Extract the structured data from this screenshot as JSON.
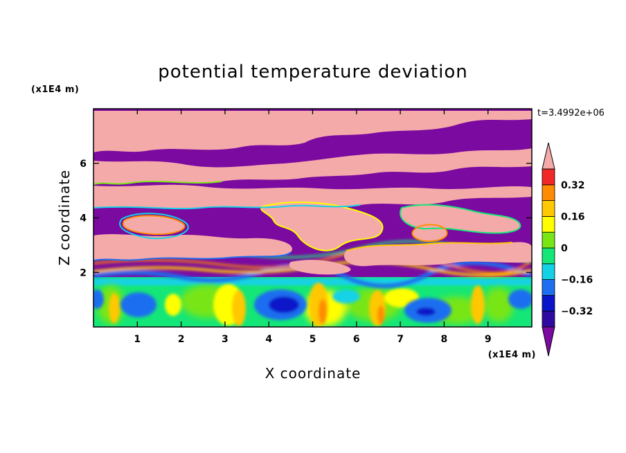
{
  "chart_data": {
    "type": "heatmap",
    "title": "potential temperature deviation",
    "xlabel": "X coordinate",
    "ylabel": "Z coordinate",
    "x_unit": "(x1E4 m)",
    "y_unit": "(x1E4 m)",
    "time_label": "t=3.4992e+06",
    "xlim": [
      0,
      10
    ],
    "ylim": [
      0,
      8
    ],
    "x_ticks": [
      "1",
      "2",
      "3",
      "4",
      "5",
      "6",
      "7",
      "8",
      "9"
    ],
    "y_ticks": [
      "2",
      "4",
      "6"
    ],
    "grid": false,
    "colorbar": {
      "placement": "right",
      "extend": "both",
      "levels": [
        -0.4,
        -0.32,
        -0.24,
        -0.16,
        -0.08,
        0,
        0.08,
        0.16,
        0.24,
        0.32,
        0.4
      ],
      "tick_labels": [
        "0.32",
        "0.16",
        "0",
        "−0.16",
        "−0.32"
      ],
      "tick_values": [
        0.32,
        0.16,
        0,
        -0.16,
        -0.32
      ],
      "colors": [
        "#7B0AA0",
        "#2E0AA0",
        "#0A14C8",
        "#1E6EF0",
        "#14D2E6",
        "#14E678",
        "#78E614",
        "#FFFF00",
        "#FFC800",
        "#FF8C00",
        "#F02828",
        "#F5AAAA"
      ]
    }
  }
}
